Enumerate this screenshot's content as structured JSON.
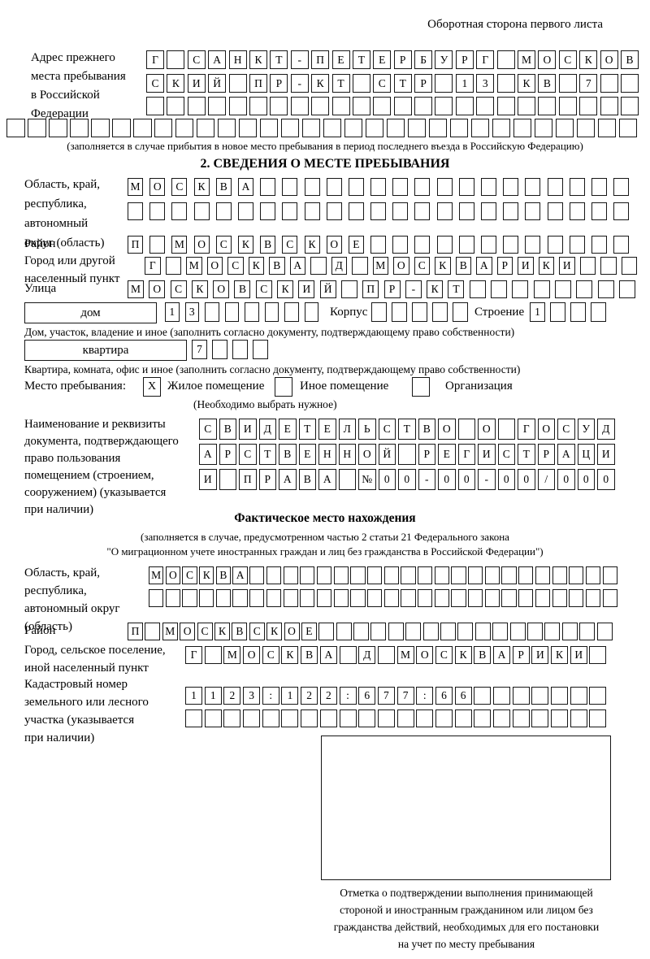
{
  "page": {
    "back_note": "Оборотная сторона первого листа"
  },
  "section_prev": {
    "label_lines": [
      "Адрес прежнего",
      "места пребывания",
      "в Российской",
      "Федерации"
    ],
    "caption": "(заполняется в случае прибытия в новое место пребывания в период последнего въезда в Российскую Федерацию)"
  },
  "section2": {
    "title": "2. СВЕДЕНИЯ О МЕСТЕ ПРЕБЫВАНИЯ",
    "oblast_label_lines": [
      "Область, край,",
      "республика,",
      "автономный",
      "округ (область)"
    ],
    "rayon_label": "Район",
    "gorod_label_lines": [
      "Город или другой",
      "населенный пункт"
    ],
    "ulitsa_label": "Улица",
    "dom_box_label": "дом",
    "korpus_label": "Корпус",
    "stroenie_label": "Строение",
    "dom_caption": "Дом, участок, владение и иное (заполнить согласно документу, подтверждающему право собственности)",
    "kvartira_box_label": "квартира",
    "kvartira_caption": "Квартира, комната, офис и иное (заполнить согласно документу, подтверждающему право собственности)",
    "mesto_label": "Место пребывания:",
    "option1": "Жилое помещение",
    "option1_mark": "X",
    "option2": "Иное помещение",
    "option3": "Организация",
    "choose_note": "(Необходимо выбрать нужное)",
    "doc_label_lines": [
      "Наименование и реквизиты",
      "документа, подтверждающего",
      "право пользования",
      "помещением (строением,",
      "сооружением) (указывается",
      "при наличии)"
    ]
  },
  "section_fact": {
    "title": "Фактическое место нахождения",
    "caption1": "(заполняется в случае, предусмотренном частью 2 статьи 21 Федерального закона",
    "caption2": "\"О миграционном учете иностранных граждан и лиц без гражданства в Российской Федерации\")",
    "oblast_label_lines": [
      "Область, край,",
      "республика,",
      "автономный округ",
      "(область)"
    ],
    "rayon_label": "Район",
    "gorod_label_lines": [
      "Город, сельское поселение,",
      "иной населенный пункт"
    ],
    "kadastr_label_lines": [
      "Кадастровый номер",
      "земельного или лесного",
      "участка (указывается",
      "при наличии)"
    ],
    "stamp_caption_lines": [
      "Отметка о подтверждении выполнения принимающей",
      "стороной и иностранным гражданином или лицом без",
      "гражданства действий, необходимых для его постановки",
      "на учет по месту пребывания"
    ]
  },
  "box_rows": [
    {
      "id": "prev1",
      "len": 24,
      "text": "Г_САНКТ-ПЕТЕРБУРГ_МОСКОВ"
    },
    {
      "id": "prev2",
      "len": 24,
      "text": "СКИЙ_ПР-КТ_СТР_13_КВ_7"
    },
    {
      "id": "prev3",
      "len": 24,
      "text": ""
    },
    {
      "id": "prev4",
      "len": 30,
      "text": ""
    },
    {
      "id": "obl1a",
      "len": 23,
      "text": "МОСКВА"
    },
    {
      "id": "obl1b",
      "len": 23,
      "text": ""
    },
    {
      "id": "rayon1",
      "len": 23,
      "text": "П_МОСКВСКОЕ"
    },
    {
      "id": "gorod1",
      "len": 24,
      "text": "Г_МОСКВА_Д_МОСКВАРИКИ"
    },
    {
      "id": "ulitsa",
      "len": 24,
      "text": "МОСКОВСКИЙ_ПР-КТ"
    },
    {
      "id": "domnum",
      "len": 8,
      "text": "13"
    },
    {
      "id": "korpusnum",
      "len": 5,
      "text": ""
    },
    {
      "id": "stroenienum",
      "len": 4,
      "text": "1"
    },
    {
      "id": "kvnum",
      "len": 4,
      "text": "7"
    },
    {
      "id": "doc1",
      "len": 21,
      "text": "СВИДЕТЕЛЬСТВО_О_ГОСУД"
    },
    {
      "id": "doc2",
      "len": 21,
      "text": "АРСТВЕННОЙ_РЕГИСТРАЦИ"
    },
    {
      "id": "doc3",
      "len": 21,
      "text": "И_ПРАВА_№00-00-00/000"
    },
    {
      "id": "obl2a",
      "len": 28,
      "text": "МОСКВА"
    },
    {
      "id": "obl2b",
      "len": 28,
      "text": ""
    },
    {
      "id": "rayon2",
      "len": 28,
      "text": "П_МОСКВСКОЕ"
    },
    {
      "id": "gorod2",
      "len": 22,
      "text": "Г_МОСКВА_Д_МОСКВАРИКИ"
    },
    {
      "id": "kad1",
      "len": 22,
      "text": "1123:122:677:66"
    },
    {
      "id": "kad2",
      "len": 22,
      "text": ""
    }
  ]
}
